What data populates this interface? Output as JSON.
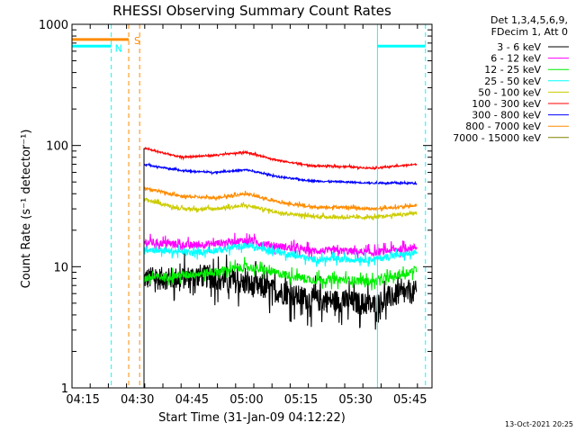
{
  "chart_data": {
    "type": "line",
    "title": "RHESSI Observing Summary Count Rates",
    "xlabel": "Start Time (31-Jan-09 04:12:22)",
    "ylabel": "Count Rate (s⁻¹ detector⁻¹)",
    "yscale": "log",
    "ylim": [
      1,
      1000
    ],
    "xlim_min": [
      4.2,
      5.85
    ],
    "x_ticks": [
      {
        "value": 4.25,
        "label": "04:15"
      },
      {
        "value": 4.5,
        "label": "04:30"
      },
      {
        "value": 4.75,
        "label": "04:45"
      },
      {
        "value": 5.0,
        "label": "05:00"
      },
      {
        "value": 5.25,
        "label": "05:15"
      },
      {
        "value": 5.5,
        "label": "05:30"
      },
      {
        "value": 5.75,
        "label": "05:45"
      }
    ],
    "y_ticks": [
      {
        "value": 1,
        "label": "1"
      },
      {
        "value": 10,
        "label": "10"
      },
      {
        "value": 100,
        "label": "100"
      },
      {
        "value": 1000,
        "label": "1000"
      }
    ],
    "legend_header": [
      "Det 1,3,4,5,6,9,",
      "FDecim 1, Att 0"
    ],
    "legend_position": "right",
    "series": [
      {
        "name": "3 - 6 keV",
        "color": "#000000",
        "noise": 0.22,
        "points": [
          [
            4.53,
            8
          ],
          [
            4.7,
            8
          ],
          [
            4.78,
            8.5
          ],
          [
            4.95,
            7.5
          ],
          [
            5.05,
            6.8
          ],
          [
            5.15,
            6.2
          ],
          [
            5.3,
            5.3
          ],
          [
            5.45,
            5.2
          ],
          [
            5.58,
            4.8
          ],
          [
            5.68,
            5.8
          ],
          [
            5.78,
            6.2
          ]
        ]
      },
      {
        "name": "6 - 12 keV",
        "color": "#ff00ff",
        "noise": 0.07,
        "points": [
          [
            4.53,
            16
          ],
          [
            4.75,
            15
          ],
          [
            4.85,
            15.5
          ],
          [
            5.0,
            16.5
          ],
          [
            5.12,
            15
          ],
          [
            5.3,
            13.5
          ],
          [
            5.45,
            13.5
          ],
          [
            5.58,
            13
          ],
          [
            5.7,
            14
          ],
          [
            5.78,
            14.5
          ]
        ]
      },
      {
        "name": "12 - 25 keV",
        "color": "#00ee00",
        "noise": 0.08,
        "points": [
          [
            4.53,
            8
          ],
          [
            4.7,
            8.5
          ],
          [
            4.85,
            9
          ],
          [
            5.0,
            10
          ],
          [
            5.12,
            9
          ],
          [
            5.3,
            7.8
          ],
          [
            5.45,
            7.8
          ],
          [
            5.58,
            7.5
          ],
          [
            5.7,
            8.5
          ],
          [
            5.78,
            9.5
          ]
        ]
      },
      {
        "name": "25 - 50 keV",
        "color": "#00ffff",
        "noise": 0.06,
        "points": [
          [
            4.53,
            14
          ],
          [
            4.75,
            13
          ],
          [
            4.9,
            14
          ],
          [
            5.0,
            15
          ],
          [
            5.12,
            13.5
          ],
          [
            5.3,
            11.5
          ],
          [
            5.45,
            11.5
          ],
          [
            5.58,
            11.5
          ],
          [
            5.7,
            12.5
          ],
          [
            5.78,
            13
          ]
        ]
      },
      {
        "name": "50 - 100 keV",
        "color": "#cccc00",
        "noise": 0.03,
        "points": [
          [
            4.53,
            36
          ],
          [
            4.7,
            30
          ],
          [
            4.85,
            30
          ],
          [
            5.0,
            32
          ],
          [
            5.15,
            28
          ],
          [
            5.3,
            26
          ],
          [
            5.45,
            25.5
          ],
          [
            5.58,
            25.5
          ],
          [
            5.7,
            27
          ],
          [
            5.78,
            27.5
          ]
        ]
      },
      {
        "name": "100 - 300 keV",
        "color": "#ff0000",
        "noise": 0.015,
        "points": [
          [
            4.53,
            95
          ],
          [
            4.7,
            80
          ],
          [
            4.85,
            83
          ],
          [
            5.0,
            88
          ],
          [
            5.15,
            75
          ],
          [
            5.3,
            68
          ],
          [
            5.45,
            67
          ],
          [
            5.58,
            65
          ],
          [
            5.7,
            68
          ],
          [
            5.78,
            70
          ]
        ]
      },
      {
        "name": "300 - 800 keV",
        "color": "#0000ff",
        "noise": 0.015,
        "points": [
          [
            4.53,
            70
          ],
          [
            4.7,
            62
          ],
          [
            4.85,
            60
          ],
          [
            5.0,
            63
          ],
          [
            5.15,
            55
          ],
          [
            5.3,
            51
          ],
          [
            5.45,
            50
          ],
          [
            5.58,
            49
          ],
          [
            5.7,
            49
          ],
          [
            5.78,
            49
          ]
        ]
      },
      {
        "name": "800 - 7000 keV",
        "color": "#ff8c00",
        "noise": 0.025,
        "points": [
          [
            4.53,
            45
          ],
          [
            4.7,
            38
          ],
          [
            4.85,
            37
          ],
          [
            5.0,
            40
          ],
          [
            5.15,
            34
          ],
          [
            5.3,
            31
          ],
          [
            5.45,
            31
          ],
          [
            5.58,
            30
          ],
          [
            5.7,
            31
          ],
          [
            5.78,
            32
          ]
        ]
      },
      {
        "name": "7000 - 15000 keV",
        "color": "#808000",
        "noise": 0,
        "points": []
      }
    ],
    "annotations": {
      "saa_label": "S",
      "night_label": "N",
      "saa_level": 750,
      "night_level": 660,
      "saa_segment": [
        4.2,
        4.46
      ],
      "night_segment_1": [
        4.2,
        4.38
      ],
      "night_segment_2": [
        5.6,
        5.82
      ],
      "saa_color": "#ff8c00",
      "night_color": "#00ffff",
      "cyan_solid_lines": [
        4.2,
        5.6
      ],
      "cyan_dashed_lines": [
        4.38,
        5.82
      ],
      "orange_dashed_lines": [
        4.46,
        4.51
      ]
    },
    "timestamp": "13-Oct-2021 20:25"
  }
}
